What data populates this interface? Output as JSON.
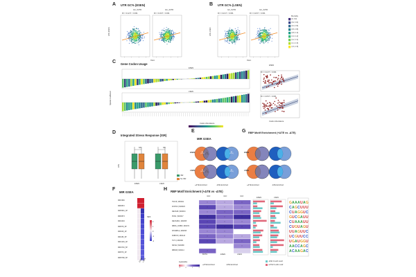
{
  "panels": {
    "a": {
      "letter": "A",
      "title": "UTR GC% (ESEN)",
      "facets": [
        "GC_5UTR",
        "GC_3UTR"
      ],
      "stats": [
        "R² = 0.12    P < 0.001",
        "R² = 0.19    P < 0.001"
      ],
      "ylabel": "ΔTE ESEN",
      "xlabel": "%GC"
    },
    "b": {
      "letter": "B",
      "title": "UTR GC% (LSEN)",
      "facets": [
        "GC_5UTR",
        "GC_3UTR"
      ],
      "stats": [
        "R² = 0.21    P < 0.001",
        "R² = 0.23    P < 0.001"
      ],
      "ylabel": "ΔTE LSEN",
      "xlabel": "%GC",
      "legend_title": "Density",
      "legend_items": [
        "(0, 0.2]",
        "(0.2, 0.4]",
        "(0.4, 0.6]",
        "(0.6, 0.8]",
        "(0.8, 1.0]",
        "(1.0, 1.2]",
        "(1.2, 1.4]",
        "(1.4, 1.6]",
        "(1.6, 1.8]"
      ],
      "legend_colors": [
        "#46337f",
        "#3b4a8b",
        "#31688e",
        "#26828e",
        "#1f9e89",
        "#35b779",
        "#6ece58",
        "#b5de2b",
        "#fde725"
      ]
    },
    "c": {
      "letter": "C",
      "title": "Gene Codon Usage",
      "facet_top": "ESEN",
      "facet_bottom": "LSEN",
      "ylabel": "Spatial Coefficient",
      "xlabel": "Codon Abundance",
      "colorbar_title": "Codon Abundance",
      "stats_top": "R² = 0.12    P < 0.001",
      "stats_bottom": "R² = 0.15    P < 0.001",
      "side_title": "ESEN"
    },
    "d": {
      "letter": "D",
      "title": "Integrated Stress Response (ISR)",
      "groups": [
        "ESEN",
        "LSEN"
      ],
      "ns_labels": [
        "NS",
        "NS"
      ],
      "ylabel": "ΔTE",
      "legend": [
        "ISR",
        "No ISR"
      ],
      "legend_colors": [
        "#3a9a6a",
        "#e0843c"
      ]
    },
    "e": {
      "letter": "E",
      "title": "MIR GSEA",
      "rows": [
        "ESEN",
        "LSEN"
      ],
      "venns": [
        {
          "left": "83\n(11%)",
          "mid": "23\n(17%)",
          "right": "94\n(12%)"
        },
        {
          "left": "74\n(11%)",
          "mid": "17\n(17%)",
          "right": "86\n(12%)"
        }
      ],
      "bottom_labels": [
        "+ΔTE Enriched",
        "-ΔTE Enriched"
      ]
    },
    "g": {
      "letter": "G",
      "title": "RBP Motif Enrichment (+ΔTE vs -ΔTE)",
      "rows": [
        "ESEN",
        "LSEN"
      ],
      "bottom_labels": [
        "+ΔTE Enriched",
        "-ΔTE Enriched"
      ]
    },
    "f": {
      "letter": "F",
      "title": "MIR GSEA",
      "mirs": [
        "MIR1960",
        "MIR6872",
        "MIR5681_3P",
        "MIR6873",
        "MIR4263",
        "MIR578_5P",
        "MIR648_3P",
        "MIR186_5P",
        "MIR1236_3P",
        "MIR4746_5P",
        "MIR579_3P",
        "MIR5788_5P"
      ],
      "colorbar_title": "NES",
      "ticks": [
        "-2",
        "-1",
        "0",
        "1",
        "2"
      ],
      "col_labels": [
        "ESEN",
        "LSEN"
      ]
    },
    "h": {
      "letter": "H",
      "title": "RBP Motif Enrichment (+ΔTE vs -ΔTE)",
      "col_groups": [
        "nGC",
        "nGC",
        "nGC"
      ],
      "cols": [
        "BOTH",
        "ESEN",
        "LSEN"
      ],
      "rbps": [
        "TNF15 | M00021",
        "ZC3H10 | M00029",
        "MEX3AB | M00034",
        "PUM1 | M00017",
        "MEX3ABC | M00055",
        "RBMS_CIRBP | M00074",
        "KHDRBS1 | M00058",
        "PABPC5 | M00143",
        "TUT1 | M00000",
        "SRSF2 | M00088",
        "RBM38 | M00114"
      ],
      "heat_title": "log2(odds)",
      "heat_ticks": [
        "-2",
        "0",
        "2",
        "4"
      ],
      "bar_titles": [
        "ESEN",
        "LSEN"
      ],
      "bar_legend": [
        "-ΔTE % with motif",
        "+ΔTE % with motif"
      ],
      "bar_colors": [
        "#6cc8c8",
        "#e0687a"
      ],
      "x_bottom": [
        "+ΔTE Enriched",
        "-ΔTE Enriched"
      ]
    }
  }
}
